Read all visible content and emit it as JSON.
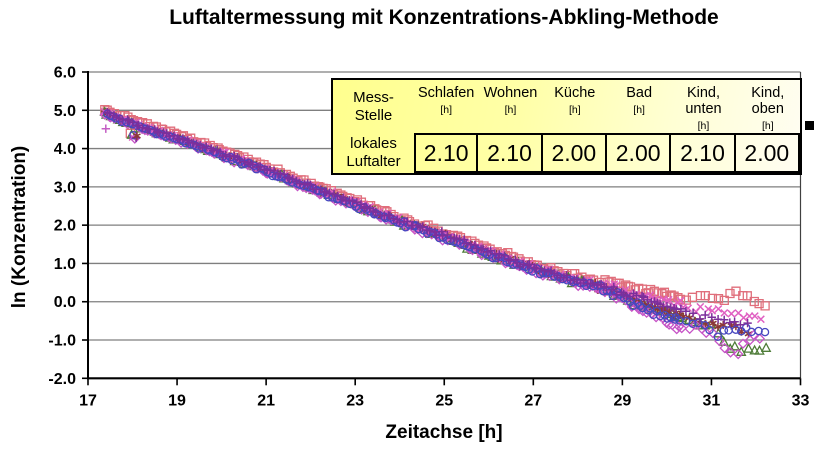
{
  "title": "Luftaltermessung mit Konzentrations-Abkling-Methode",
  "table": {
    "corner_label": "Mess- Stelle",
    "row_label": "lokales Luftalter",
    "columns": [
      {
        "label": "Schlafen",
        "unit": "[h]",
        "value": "2.10"
      },
      {
        "label": "Wohnen",
        "unit": "[h]",
        "value": "2.10"
      },
      {
        "label": "Küche",
        "unit": "[h]",
        "value": "2.00"
      },
      {
        "label": "Bad",
        "unit": "[h]",
        "value": "2.00"
      },
      {
        "label": "Kind, unten",
        "unit": "[h]",
        "value": "2.10"
      },
      {
        "label": "Kind, oben",
        "unit": "[h]",
        "value": "2.00"
      }
    ]
  },
  "chart_data": {
    "type": "scatter",
    "title": "Luftaltermessung mit Konzentrations-Abkling-Methode",
    "xlabel": "Zeitachse [h]",
    "ylabel": "ln (Konzentration)",
    "xlim": [
      17,
      33
    ],
    "ylim": [
      -2,
      6
    ],
    "xticks": [
      17,
      19,
      21,
      23,
      25,
      27,
      29,
      31,
      33
    ],
    "yticks": [
      6,
      5,
      4,
      3,
      2,
      1,
      0,
      -1,
      -2
    ],
    "ytick_labels": [
      "6.0",
      "5.0",
      "4.0",
      "3.0",
      "2.0",
      "1.0",
      "0.0",
      "-1.0",
      "-2.0"
    ],
    "grid": "horizontal",
    "legend": "none",
    "grid_color": "#7f7f7f",
    "axis_color": "#000000",
    "series": [
      {
        "name": "messreihe-squares",
        "marker": "square",
        "color": "#e06e7b",
        "anchors": [
          [
            17.35,
            5.02
          ],
          [
            18,
            4.75
          ],
          [
            19,
            4.36
          ],
          [
            20,
            3.95
          ],
          [
            21,
            3.53
          ],
          [
            22,
            3.08
          ],
          [
            23,
            2.64
          ],
          [
            24,
            2.2
          ],
          [
            25,
            1.8
          ],
          [
            26,
            1.38
          ],
          [
            27,
            0.96
          ],
          [
            28,
            0.62
          ],
          [
            28.6,
            0.5
          ],
          [
            29,
            0.4
          ],
          [
            29.4,
            0.3
          ],
          [
            30,
            0.18
          ],
          [
            30.4,
            0.02
          ],
          [
            30.8,
            0.15
          ],
          [
            31.2,
            0.08
          ],
          [
            31.6,
            0.22
          ],
          [
            32,
            0.06
          ],
          [
            32.3,
            -0.12
          ]
        ]
      },
      {
        "name": "messreihe-triangles",
        "marker": "triangle",
        "color": "#4e7c38",
        "anchors": [
          [
            17.35,
            4.93
          ],
          [
            18,
            4.63
          ],
          [
            19,
            4.25
          ],
          [
            20,
            3.84
          ],
          [
            21,
            3.42
          ],
          [
            22,
            2.97
          ],
          [
            23,
            2.53
          ],
          [
            24,
            2.08
          ],
          [
            25,
            1.69
          ],
          [
            26,
            1.26
          ],
          [
            27,
            0.84
          ],
          [
            28,
            0.5
          ],
          [
            28.6,
            0.36
          ],
          [
            29,
            0.12
          ],
          [
            29.5,
            -0.12
          ],
          [
            30,
            -0.32
          ],
          [
            30.4,
            -0.46
          ],
          [
            30.8,
            -0.56
          ],
          [
            31.1,
            -0.7
          ],
          [
            31.4,
            -1.18
          ],
          [
            31.8,
            -1.2
          ],
          [
            32.25,
            -1.3
          ]
        ]
      },
      {
        "name": "messreihe-asterisks",
        "marker": "asterisk",
        "color": "#8c3737",
        "anchors": [
          [
            17.35,
            4.95
          ],
          [
            18,
            4.65
          ],
          [
            19,
            4.27
          ],
          [
            20,
            3.86
          ],
          [
            21,
            3.44
          ],
          [
            22,
            2.99
          ],
          [
            23,
            2.55
          ],
          [
            24,
            2.1
          ],
          [
            25,
            1.71
          ],
          [
            26,
            1.28
          ],
          [
            27,
            0.86
          ],
          [
            28,
            0.52
          ],
          [
            28.6,
            0.38
          ],
          [
            29,
            0.18
          ],
          [
            29.5,
            -0.06
          ],
          [
            30,
            -0.28
          ],
          [
            30.5,
            -0.46
          ],
          [
            31,
            -0.6
          ],
          [
            31.4,
            -0.72
          ],
          [
            31.85,
            -0.8
          ]
        ]
      },
      {
        "name": "messreihe-diamonds",
        "marker": "diamond",
        "color": "#c653c6",
        "anchors": [
          [
            17.35,
            4.9
          ],
          [
            18,
            4.6
          ],
          [
            19,
            4.22
          ],
          [
            20,
            3.81
          ],
          [
            21,
            3.39
          ],
          [
            22,
            2.94
          ],
          [
            23,
            2.5
          ],
          [
            24,
            2.05
          ],
          [
            25,
            1.66
          ],
          [
            26,
            1.23
          ],
          [
            27,
            0.81
          ],
          [
            28,
            0.47
          ],
          [
            28.6,
            0.3
          ],
          [
            29,
            0.06
          ],
          [
            29.4,
            -0.2
          ],
          [
            29.8,
            -0.4
          ],
          [
            30.2,
            -0.72
          ],
          [
            30.6,
            -0.62
          ],
          [
            31,
            -0.82
          ],
          [
            31.5,
            -1.4
          ],
          [
            31.8,
            -0.98
          ],
          [
            32.15,
            -0.92
          ]
        ]
      },
      {
        "name": "messreihe-xcrosses",
        "marker": "x",
        "color": "#e05fc2",
        "anchors": [
          [
            17.35,
            4.97
          ],
          [
            18,
            4.68
          ],
          [
            19,
            4.3
          ],
          [
            20,
            3.89
          ],
          [
            21,
            3.47
          ],
          [
            22,
            3.02
          ],
          [
            23,
            2.58
          ],
          [
            24,
            2.13
          ],
          [
            25,
            1.74
          ],
          [
            26,
            1.31
          ],
          [
            27,
            0.89
          ],
          [
            28,
            0.55
          ],
          [
            28.6,
            0.45
          ],
          [
            29,
            0.3
          ],
          [
            29.5,
            0.15
          ],
          [
            30,
            0.03
          ],
          [
            30.5,
            -0.1
          ],
          [
            31,
            -0.2
          ],
          [
            31.5,
            -0.3
          ],
          [
            32,
            -0.42
          ],
          [
            32.25,
            -0.5
          ]
        ]
      },
      {
        "name": "messreihe-circles",
        "marker": "circle",
        "color": "#4747c0",
        "anchors": [
          [
            17.35,
            4.92
          ],
          [
            18,
            4.62
          ],
          [
            19,
            4.24
          ],
          [
            20,
            3.83
          ],
          [
            21,
            3.41
          ],
          [
            22,
            2.96
          ],
          [
            23,
            2.52
          ],
          [
            24,
            2.07
          ],
          [
            25,
            1.68
          ],
          [
            26,
            1.25
          ],
          [
            27,
            0.83
          ],
          [
            28,
            0.49
          ],
          [
            28.6,
            0.34
          ],
          [
            29,
            0.12
          ],
          [
            29.5,
            -0.16
          ],
          [
            30,
            -0.38
          ],
          [
            30.4,
            -0.5
          ],
          [
            30.8,
            -0.64
          ],
          [
            31.2,
            -0.85
          ],
          [
            31.6,
            -0.72
          ],
          [
            32,
            -0.8
          ],
          [
            32.2,
            -0.74
          ]
        ]
      },
      {
        "name": "messreihe-pluses",
        "marker": "plus",
        "color": "#7b2f9b",
        "anchors": [
          [
            17.35,
            4.96
          ],
          [
            18,
            4.66
          ],
          [
            19,
            4.29
          ],
          [
            20,
            3.88
          ],
          [
            21,
            3.46
          ],
          [
            22,
            3.01
          ],
          [
            23,
            2.57
          ],
          [
            24,
            2.12
          ],
          [
            25,
            1.73
          ],
          [
            26,
            1.3
          ],
          [
            27,
            0.88
          ],
          [
            28,
            0.54
          ],
          [
            28.6,
            0.42
          ],
          [
            29,
            0.24
          ],
          [
            29.5,
            0.06
          ],
          [
            30,
            -0.12
          ],
          [
            30.5,
            -0.3
          ],
          [
            31,
            -0.45
          ],
          [
            31.5,
            -0.56
          ],
          [
            31.9,
            -0.62
          ]
        ]
      }
    ],
    "outliers": [
      {
        "t": 17.4,
        "y": 4.52,
        "marker": "plus",
        "color": "#c45ec4"
      },
      {
        "t": 17.95,
        "y": 4.4,
        "marker": "square",
        "color": "#e06e7b"
      },
      {
        "t": 17.98,
        "y": 4.36,
        "marker": "triangle",
        "color": "#4e7c38"
      },
      {
        "t": 18.0,
        "y": 4.3,
        "marker": "x",
        "color": "#e05fc2"
      },
      {
        "t": 18.02,
        "y": 4.35,
        "marker": "circle",
        "color": "#4747c0"
      },
      {
        "t": 18.05,
        "y": 4.26,
        "marker": "diamond",
        "color": "#c653c6"
      },
      {
        "t": 18.08,
        "y": 4.28,
        "marker": "plus",
        "color": "#7b2f9b"
      },
      {
        "t": 18.1,
        "y": 4.33,
        "marker": "asterisk",
        "color": "#8c3737"
      }
    ],
    "sampling": {
      "t_step": 0.075,
      "noise_base": 0.045,
      "noise_growth": 0.006,
      "tail_thin_after": 30.3,
      "tail_thin_factor": 1.8
    }
  }
}
